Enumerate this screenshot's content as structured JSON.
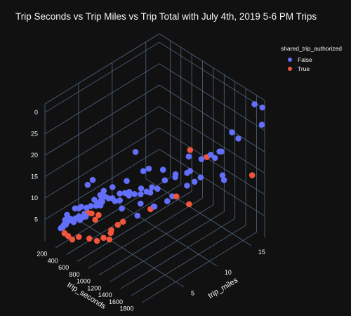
{
  "chart_data": {
    "type": "scatter",
    "title": "Trip Seconds vs Trip Miles vs Trip Total with July 4th, 2019 5-6 PM Trips",
    "theme_bg": "#111111",
    "grid_color": "#506784",
    "legend": {
      "title": "shared_trip_authorized",
      "position": "top-right",
      "entries": [
        {
          "name": "False",
          "color": "#636efa"
        },
        {
          "name": "True",
          "color": "#ef553b"
        }
      ]
    },
    "axes": {
      "x": {
        "label": "trip_seconds",
        "range": [
          0,
          1950
        ],
        "ticks": [
          "200",
          "400",
          "600",
          "800",
          "1000",
          "1200",
          "1400",
          "1600",
          "1800"
        ]
      },
      "y": {
        "label": "trip_miles",
        "range": [
          0,
          17
        ],
        "ticks": [
          "5",
          "10",
          "15"
        ]
      },
      "z": {
        "label": "",
        "range": [
          0,
          32
        ],
        "ticks": [
          "5",
          "10",
          "15",
          "20",
          "25",
          "30"
        ],
        "tick_labels_visible": [
          "5",
          "10",
          "15",
          "20",
          "25",
          "0"
        ]
      }
    },
    "series": [
      {
        "name": "False",
        "color": "#636efa",
        "points": [
          [
            244,
            0.4,
            4.5
          ],
          [
            252,
            0.5,
            4.7
          ],
          [
            260,
            0.6,
            4.9
          ],
          [
            281,
            0.6,
            5.5
          ],
          [
            286,
            0.7,
            6.5
          ],
          [
            300,
            0.7,
            5.5
          ],
          [
            305,
            0.8,
            6.0
          ],
          [
            331,
            0.9,
            7.0
          ],
          [
            310,
            0.8,
            7.8
          ],
          [
            347,
            1.0,
            6.6
          ],
          [
            368,
            0.9,
            7.2
          ],
          [
            396,
            1.1,
            6.5
          ],
          [
            421,
            1.2,
            7.5
          ],
          [
            455,
            1.4,
            8.0
          ],
          [
            487,
            1.3,
            7.5
          ],
          [
            502,
            1.6,
            8.0
          ],
          [
            533,
            1.8,
            8.2
          ],
          [
            560,
            1.4,
            9.5
          ],
          [
            384,
            1.4,
            9.3
          ],
          [
            430,
            1.6,
            9.5
          ],
          [
            460,
            1.7,
            10.0
          ],
          [
            511,
            2.1,
            9.8
          ],
          [
            588,
            2.1,
            10.8
          ],
          [
            611,
            2.7,
            10.5
          ],
          [
            617,
            2.4,
            12.2
          ],
          [
            647,
            2.6,
            11.5
          ],
          [
            669,
            3.0,
            12.0
          ],
          [
            693,
            2.7,
            11.2
          ],
          [
            638,
            3.4,
            11.0
          ],
          [
            663,
            2.9,
            13.2
          ],
          [
            715,
            3.2,
            13.0
          ],
          [
            744,
            3.5,
            12.5
          ],
          [
            789,
            3.7,
            12.7
          ],
          [
            810,
            3.9,
            12.0
          ],
          [
            837,
            4.4,
            13.5
          ],
          [
            876,
            4.1,
            12.5
          ],
          [
            908,
            4.6,
            14.0
          ],
          [
            931,
            5.0,
            13.2
          ],
          [
            963,
            4.8,
            14.5
          ],
          [
            1010,
            5.2,
            14.0
          ],
          [
            1037,
            5.9,
            13.5
          ],
          [
            1083,
            5.6,
            15.5
          ],
          [
            1147,
            5.9,
            15.0
          ],
          [
            1165,
            6.3,
            14.5
          ],
          [
            1196,
            6.3,
            16.0
          ],
          [
            1238,
            6.8,
            15.5
          ],
          [
            542,
            2.0,
            15.5
          ],
          [
            611,
            2.2,
            17.0
          ],
          [
            715,
            3.0,
            14.5
          ],
          [
            803,
            3.6,
            15.5
          ],
          [
            904,
            4.9,
            16.5
          ],
          [
            1037,
            6.3,
            18.5
          ],
          [
            967,
            5.7,
            23.0
          ],
          [
            1114,
            6.5,
            19.5
          ],
          [
            1274,
            7.6,
            17.0
          ],
          [
            1227,
            7.7,
            19.0
          ],
          [
            1353,
            8.5,
            17.5
          ],
          [
            1409,
            8.1,
            19.0
          ],
          [
            1461,
            9.4,
            18.5
          ],
          [
            1493,
            9.6,
            19.0
          ],
          [
            1392,
            10.2,
            21.0
          ],
          [
            1514,
            11.1,
            20.5
          ],
          [
            1599,
            11.8,
            21.5
          ],
          [
            1652,
            12.0,
            21.0
          ],
          [
            1662,
            12.6,
            22.0
          ],
          [
            1713,
            12.5,
            22.5
          ],
          [
            1681,
            14.3,
            25.0
          ],
          [
            1800,
            14.3,
            24.5
          ],
          [
            1788,
            16.8,
            30.0
          ],
          [
            1908,
            17.0,
            30.0
          ],
          [
            1936,
            16.7,
            26.5
          ],
          [
            1693,
            12.8,
            16.5
          ],
          [
            1746,
            12.6,
            16.0
          ],
          [
            1325,
            8.3,
            13.0
          ],
          [
            1181,
            6.7,
            11.0
          ],
          [
            1040,
            5.4,
            9.0
          ],
          [
            1093,
            7.5,
            9.5
          ],
          [
            1256,
            8.1,
            11.5
          ],
          [
            1375,
            11.2,
            14.0
          ],
          [
            1460,
            9.4,
            15.5
          ],
          [
            1525,
            10.9,
            16.5
          ],
          [
            888,
            4.3,
            10.5
          ],
          [
            1049,
            5.8,
            11.5
          ]
        ]
      },
      {
        "name": "True",
        "color": "#ef553b",
        "points": [
          [
            264,
            0.5,
            4.7
          ],
          [
            289,
            0.6,
            3.5
          ],
          [
            331,
            0.8,
            3.0
          ],
          [
            368,
            1.1,
            2.2
          ],
          [
            441,
            1.5,
            3.0
          ],
          [
            561,
            2.1,
            3.0
          ],
          [
            639,
            2.6,
            2.6
          ],
          [
            712,
            3.0,
            3.5
          ],
          [
            758,
            3.5,
            3.0
          ],
          [
            769,
            3.6,
            4.5
          ],
          [
            793,
            3.5,
            5.5
          ],
          [
            839,
            4.1,
            6.5
          ],
          [
            885,
            4.5,
            7.2
          ],
          [
            620,
            2.5,
            7.5
          ],
          [
            645,
            2.8,
            8.5
          ],
          [
            591,
            2.2,
            9.0
          ],
          [
            566,
            1.9,
            9.2
          ],
          [
            1094,
            6.9,
            9.5
          ],
          [
            1300,
            9.1,
            12.0
          ],
          [
            1373,
            10.4,
            9.5
          ],
          [
            1467,
            9.8,
            23.5
          ],
          [
            1565,
            11.5,
            21.0
          ],
          [
            1930,
            15.3,
            16.0
          ]
        ]
      }
    ]
  }
}
